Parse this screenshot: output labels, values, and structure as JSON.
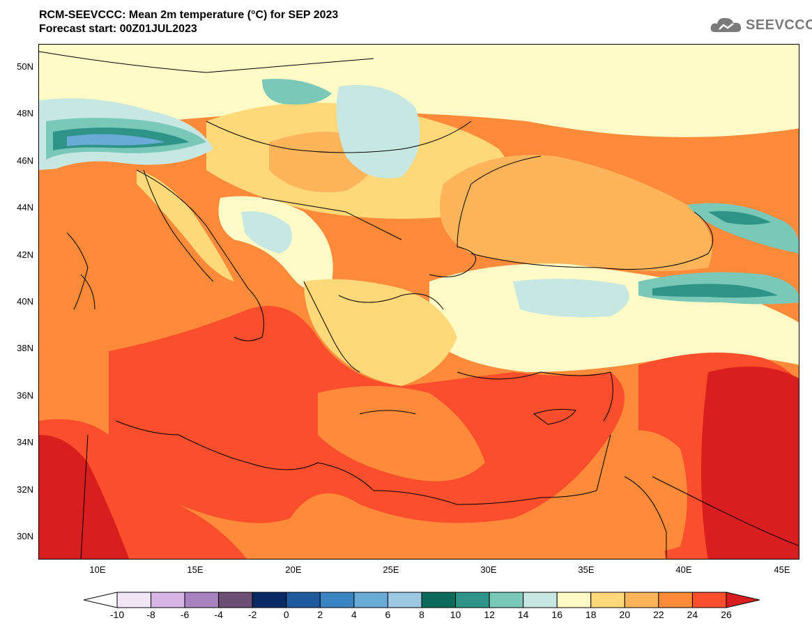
{
  "title": {
    "line1": "RCM-SEEVCCC: Mean 2m temperature (°C) for SEP 2023",
    "line2": "Forecast start: 00Z01JUL2023"
  },
  "logo": {
    "text": "SEEVCCC",
    "icon": "cloud-logo-icon"
  },
  "map": {
    "variable": "Mean 2m temperature",
    "units": "°C",
    "lat_ticks": [
      "50N",
      "48N",
      "46N",
      "44N",
      "42N",
      "40N",
      "38N",
      "36N",
      "34N",
      "32N",
      "30N"
    ],
    "lon_ticks": [
      "10E",
      "15E",
      "20E",
      "25E",
      "30E",
      "35E",
      "40E",
      "45E"
    ]
  },
  "colorbar": {
    "labels": [
      "-10",
      "-8",
      "-6",
      "-4",
      "-2",
      "0",
      "2",
      "4",
      "6",
      "8",
      "10",
      "12",
      "14",
      "16",
      "18",
      "20",
      "22",
      "24",
      "26"
    ],
    "colors": [
      "#f0e6f6",
      "#d7b5e4",
      "#a883bf",
      "#6b4f75",
      "#0a2a66",
      "#1f5a9e",
      "#3a83c3",
      "#6aaad7",
      "#9cc8e2",
      "#0b6a5a",
      "#2e9488",
      "#79c8b8",
      "#c7e8e2",
      "#fffac6",
      "#ffd87a",
      "#feb45a",
      "#fe8a3a",
      "#fb4e2c"
    ],
    "under_color": "#ffffff",
    "over_color": "#d81e1e"
  }
}
